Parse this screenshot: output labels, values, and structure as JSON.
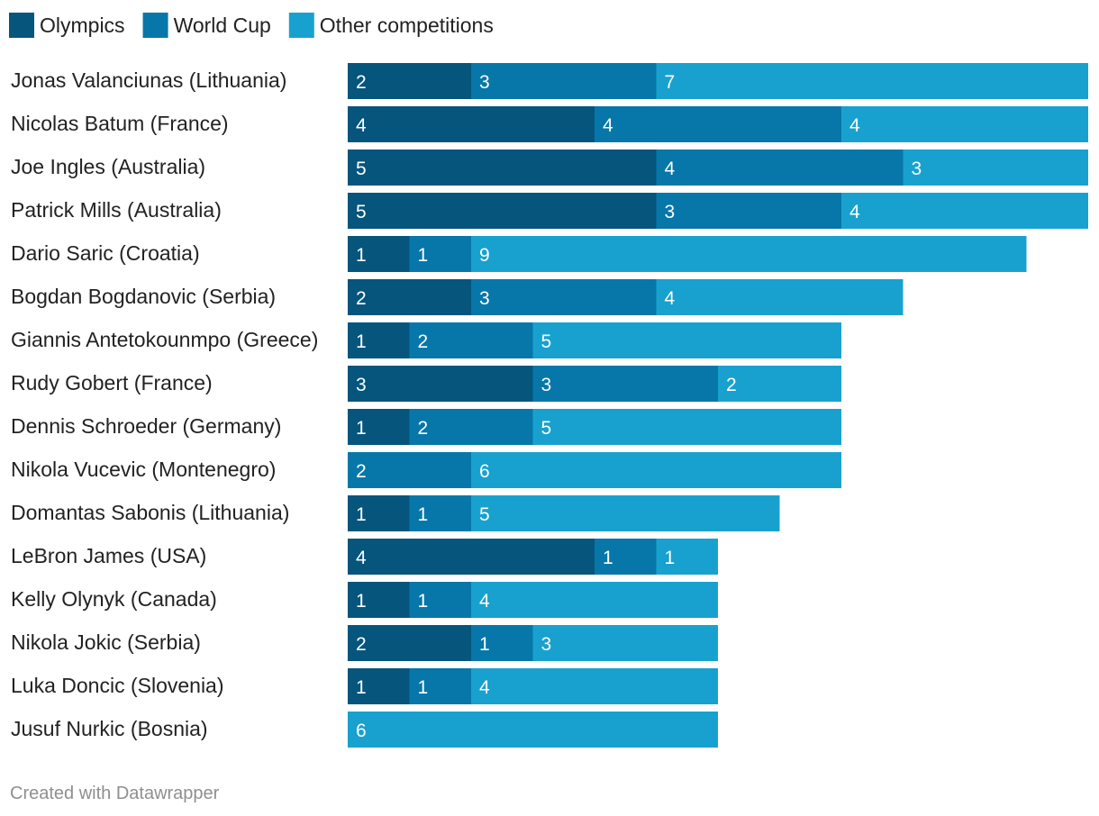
{
  "chart_data": {
    "type": "bar",
    "orientation": "horizontal",
    "stacked": true,
    "title": "",
    "xlabel": "",
    "ylabel": "",
    "xlim": [
      0,
      12
    ],
    "grid": false,
    "legend_position": "top-left",
    "categories": [
      "Jonas Valanciunas (Lithuania)",
      "Nicolas Batum (France)",
      "Joe Ingles (Australia)",
      "Patrick Mills (Australia)",
      "Dario Saric (Croatia)",
      "Bogdan Bogdanovic (Serbia)",
      "Giannis Antetokounmpo (Greece)",
      "Rudy Gobert (France)",
      "Dennis Schroeder (Germany)",
      "Nikola Vucevic (Montenegro)",
      "Domantas Sabonis (Lithuania)",
      "LeBron James (USA)",
      "Kelly Olynyk (Canada)",
      "Nikola Jokic (Serbia)",
      "Luka Doncic (Slovenia)",
      "Jusuf Nurkic (Bosnia)"
    ],
    "series": [
      {
        "name": "Olympics",
        "color": "#05557d",
        "values": [
          2,
          4,
          5,
          5,
          1,
          2,
          1,
          3,
          1,
          0,
          1,
          4,
          1,
          2,
          1,
          0
        ]
      },
      {
        "name": "World Cup",
        "color": "#0677a8",
        "values": [
          3,
          4,
          4,
          3,
          1,
          3,
          2,
          3,
          2,
          2,
          1,
          1,
          1,
          1,
          1,
          0
        ]
      },
      {
        "name": "Other competitions",
        "color": "#18a1cf",
        "values": [
          7,
          4,
          3,
          4,
          9,
          4,
          5,
          2,
          5,
          6,
          5,
          1,
          4,
          3,
          4,
          6
        ]
      }
    ]
  },
  "footer": {
    "credit": "Created with Datawrapper"
  }
}
